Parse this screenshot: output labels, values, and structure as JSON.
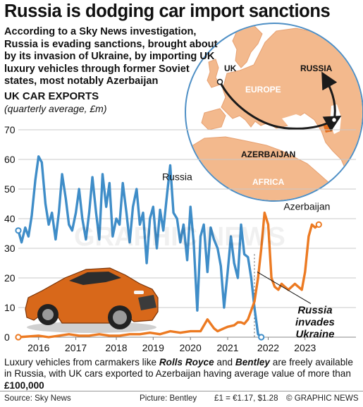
{
  "headline": "Russia is dodging car import sanctions",
  "intro": "According to a Sky News investigation, Russia is evading sanctions, brought about by its invasion of Ukraine, by importing UK luxury vehicles through former Soviet states, most notably Azerbaijan",
  "map": {
    "labels": {
      "uk": "UK",
      "russia": "RUSSIA",
      "europe": "EUROPE",
      "azerbaijan": "AZERBAIJAN",
      "africa": "AFRICA"
    },
    "colors": {
      "land": "#f3b98d",
      "sea": "#ffffff",
      "rim": "#4e8fc5",
      "route": "#1a1a1a"
    }
  },
  "chart_data": {
    "type": "line",
    "title": "UK CAR EXPORTS",
    "subtitle": "(quarterly average, £m)",
    "xlabel": "",
    "ylabel": "",
    "ylim": [
      0,
      70
    ],
    "yticks": [
      0,
      10,
      20,
      30,
      40,
      50,
      60,
      70
    ],
    "xlim": [
      2015.5,
      2023.75
    ],
    "xticks": [
      {
        "label": "2016",
        "x": 2016.0
      },
      {
        "label": "2017",
        "x": 2016.92
      },
      {
        "label": "2018",
        "x": 2017.92
      },
      {
        "label": "2019",
        "x": 2018.83
      },
      {
        "label": "2020",
        "x": 2019.75
      },
      {
        "label": "2021",
        "x": 2020.67
      },
      {
        "label": "2022",
        "x": 2021.67
      },
      {
        "label": "2023",
        "x": 2022.58
      }
    ],
    "grid": true,
    "series": [
      {
        "name": "Russia",
        "color": "#3f8dc8",
        "x": [
          2015.5,
          2015.58,
          2015.67,
          2015.75,
          2015.83,
          2015.92,
          2016.0,
          2016.08,
          2016.17,
          2016.25,
          2016.33,
          2016.42,
          2016.5,
          2016.58,
          2016.67,
          2016.75,
          2016.83,
          2016.92,
          2017.0,
          2017.08,
          2017.17,
          2017.25,
          2017.33,
          2017.42,
          2017.5,
          2017.58,
          2017.67,
          2017.75,
          2017.83,
          2017.92,
          2018.0,
          2018.08,
          2018.17,
          2018.25,
          2018.33,
          2018.42,
          2018.5,
          2018.58,
          2018.67,
          2018.75,
          2018.83,
          2018.92,
          2019.0,
          2019.08,
          2019.17,
          2019.25,
          2019.33,
          2019.42,
          2019.5,
          2019.58,
          2019.67,
          2019.75,
          2019.83,
          2019.92,
          2020.0,
          2020.08,
          2020.17,
          2020.25,
          2020.33,
          2020.42,
          2020.5,
          2020.58,
          2020.67,
          2020.75,
          2020.83,
          2020.92,
          2021.0,
          2021.08,
          2021.17,
          2021.25,
          2021.33,
          2021.42,
          2021.5
        ],
        "values": [
          36,
          32,
          37,
          34,
          41,
          53,
          61,
          59,
          45,
          38,
          42,
          33,
          42,
          55,
          47,
          38,
          36,
          42,
          50,
          40,
          33,
          42,
          54,
          42,
          33,
          55,
          44,
          52,
          34,
          40,
          38,
          52,
          42,
          32,
          44,
          50,
          38,
          42,
          25,
          40,
          44,
          30,
          43,
          36,
          48,
          58,
          42,
          40,
          32,
          38,
          26,
          44,
          32,
          9,
          34,
          38,
          22,
          37,
          33,
          30,
          24,
          10,
          22,
          34,
          25,
          20,
          38,
          28,
          27,
          20,
          10,
          1,
          0
        ]
      },
      {
        "name": "Azerbaijan",
        "color": "#ec7a22",
        "x": [
          2015.5,
          2016.0,
          2016.25,
          2016.5,
          2016.75,
          2017.0,
          2017.25,
          2017.5,
          2017.75,
          2018.0,
          2018.25,
          2018.5,
          2018.75,
          2019.0,
          2019.25,
          2019.5,
          2019.75,
          2020.0,
          2020.17,
          2020.33,
          2020.42,
          2020.58,
          2020.67,
          2020.83,
          2020.92,
          2021.0,
          2021.08,
          2021.17,
          2021.25,
          2021.33,
          2021.42,
          2021.5,
          2021.58,
          2021.67,
          2021.75,
          2021.83,
          2021.92,
          2022.0,
          2022.08,
          2022.17,
          2022.33,
          2022.5,
          2022.58,
          2022.67,
          2022.75,
          2022.83,
          2022.92
        ],
        "values": [
          0,
          0.5,
          0,
          0.5,
          1,
          0.5,
          0.5,
          1,
          0.5,
          0.5,
          1,
          1,
          1.5,
          1,
          2,
          1.5,
          2,
          2,
          6,
          3,
          2,
          3,
          3.5,
          4,
          5,
          5,
          4.5,
          6,
          9,
          12,
          20,
          30,
          42,
          38,
          20,
          17,
          16,
          18,
          17,
          16,
          18,
          16,
          22,
          34,
          38,
          37,
          38
        ]
      }
    ],
    "annotations": [
      {
        "text": "Russia",
        "x": 2019.05,
        "y": 53
      },
      {
        "text": "Azerbaijan",
        "x": 2022.05,
        "y": 43
      },
      {
        "text": "Russia invades Ukraine",
        "x": 2021.33,
        "y": 8
      }
    ],
    "marker_line": {
      "x": 2021.33
    }
  },
  "caption": {
    "part1": "Luxury vehicles from carmakers like ",
    "brand1": "Rolls Royce",
    "part2": " and ",
    "brand2": "Bentley",
    "part3": " are freely available in Russia, with UK cars exported to Azerbaijan having average value of more than ",
    "value": "£100,000"
  },
  "footer": {
    "source": "Source: Sky News",
    "picture": "Picture: Bentley",
    "fx": "£1 = €1.17, $1.28",
    "credit": "© GRAPHIC NEWS"
  },
  "watermark": "GRAPHIC NEWS",
  "car_color": "#d8681a"
}
